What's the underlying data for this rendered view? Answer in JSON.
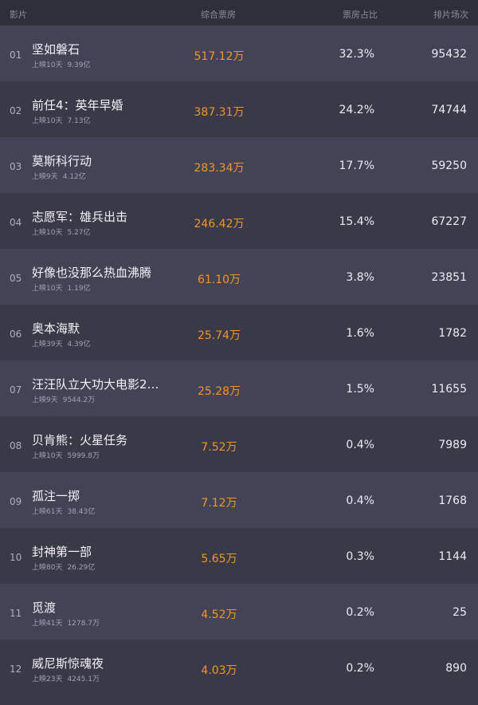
{
  "header": {
    "film": "影片",
    "box": "综合票房",
    "pct": "票房占比",
    "shows": "排片场次"
  },
  "colors": {
    "accent": "#f0952a"
  },
  "rows": [
    {
      "rank": "01",
      "title": "坚如磐石",
      "days": "上映10天",
      "total": "9.39亿",
      "box": "517.12万",
      "pct": "32.3%",
      "shows": "95432"
    },
    {
      "rank": "02",
      "title": "前任4：英年早婚",
      "days": "上映10天",
      "total": "7.13亿",
      "box": "387.31万",
      "pct": "24.2%",
      "shows": "74744"
    },
    {
      "rank": "03",
      "title": "莫斯科行动",
      "days": "上映9天",
      "total": "4.12亿",
      "box": "283.34万",
      "pct": "17.7%",
      "shows": "59250"
    },
    {
      "rank": "04",
      "title": "志愿军：雄兵出击",
      "days": "上映10天",
      "total": "5.27亿",
      "box": "246.42万",
      "pct": "15.4%",
      "shows": "67227"
    },
    {
      "rank": "05",
      "title": "好像也没那么热血沸腾",
      "days": "上映10天",
      "total": "1.19亿",
      "box": "61.10万",
      "pct": "3.8%",
      "shows": "23851"
    },
    {
      "rank": "06",
      "title": "奥本海默",
      "days": "上映39天",
      "total": "4.39亿",
      "box": "25.74万",
      "pct": "1.6%",
      "shows": "1782"
    },
    {
      "rank": "07",
      "title": "汪汪队立大功大电影2…",
      "days": "上映9天",
      "total": "9544.2万",
      "box": "25.28万",
      "pct": "1.5%",
      "shows": "11655"
    },
    {
      "rank": "08",
      "title": "贝肯熊：火星任务",
      "days": "上映10天",
      "total": "5999.8万",
      "box": "7.52万",
      "pct": "0.4%",
      "shows": "7989"
    },
    {
      "rank": "09",
      "title": "孤注一掷",
      "days": "上映61天",
      "total": "38.43亿",
      "box": "7.12万",
      "pct": "0.4%",
      "shows": "1768"
    },
    {
      "rank": "10",
      "title": "封神第一部",
      "days": "上映80天",
      "total": "26.29亿",
      "box": "5.65万",
      "pct": "0.3%",
      "shows": "1144"
    },
    {
      "rank": "11",
      "title": "觅渡",
      "days": "上映41天",
      "total": "1278.7万",
      "box": "4.52万",
      "pct": "0.2%",
      "shows": "25"
    },
    {
      "rank": "12",
      "title": "威尼斯惊魂夜",
      "days": "上映23天",
      "total": "4245.1万",
      "box": "4.03万",
      "pct": "0.2%",
      "shows": "890"
    }
  ]
}
